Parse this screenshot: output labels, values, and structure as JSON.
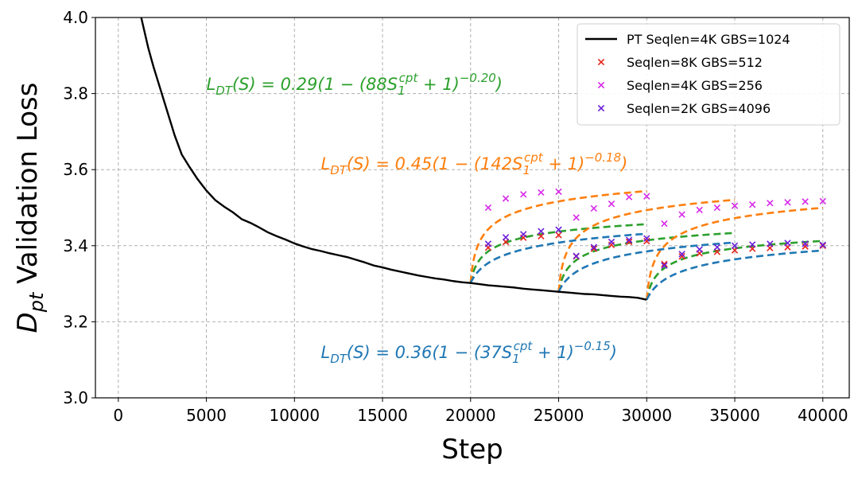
{
  "chart_data": {
    "type": "line",
    "xlabel": "Step",
    "ylabel": "D_pt Validation Loss",
    "xlim": [
      -1300,
      41500
    ],
    "ylim": [
      3.0,
      4.0
    ],
    "xticks": [
      0,
      5000,
      10000,
      15000,
      20000,
      25000,
      30000,
      35000,
      40000
    ],
    "yticks": [
      3.0,
      3.2,
      3.4,
      3.6,
      3.8,
      4.0
    ],
    "grid": true,
    "legend_position": "top-right",
    "colors": {
      "pt": "#000000",
      "green": "#2ca02c",
      "orange": "#ff7f0e",
      "blue": "#1f77b4",
      "red": "#e8241d",
      "magenta": "#d62ae8",
      "purple": "#6a1fd9"
    },
    "pt_curve": {
      "name": "PT Seqlen=4K GBS=1024",
      "points": [
        [
          1300,
          4.0
        ],
        [
          1500,
          3.96
        ],
        [
          1700,
          3.92
        ],
        [
          2000,
          3.87
        ],
        [
          2400,
          3.81
        ],
        [
          2800,
          3.75
        ],
        [
          3200,
          3.69
        ],
        [
          3600,
          3.64
        ],
        [
          4000,
          3.61
        ],
        [
          4500,
          3.575
        ],
        [
          5000,
          3.545
        ],
        [
          5500,
          3.52
        ],
        [
          6000,
          3.503
        ],
        [
          6500,
          3.488
        ],
        [
          7000,
          3.47
        ],
        [
          7500,
          3.46
        ],
        [
          8000,
          3.448
        ],
        [
          8500,
          3.435
        ],
        [
          9000,
          3.425
        ],
        [
          9500,
          3.416
        ],
        [
          10000,
          3.406
        ],
        [
          10500,
          3.398
        ],
        [
          11000,
          3.391
        ],
        [
          11500,
          3.386
        ],
        [
          12000,
          3.38
        ],
        [
          12500,
          3.375
        ],
        [
          13000,
          3.37
        ],
        [
          13500,
          3.363
        ],
        [
          14000,
          3.356
        ],
        [
          14500,
          3.348
        ],
        [
          15000,
          3.343
        ],
        [
          15500,
          3.337
        ],
        [
          16000,
          3.332
        ],
        [
          16500,
          3.327
        ],
        [
          17000,
          3.322
        ],
        [
          17500,
          3.318
        ],
        [
          18000,
          3.314
        ],
        [
          18500,
          3.311
        ],
        [
          19000,
          3.307
        ],
        [
          19500,
          3.304
        ],
        [
          20000,
          3.302
        ],
        [
          20500,
          3.299
        ],
        [
          21000,
          3.296
        ],
        [
          21500,
          3.294
        ],
        [
          22000,
          3.292
        ],
        [
          22500,
          3.29
        ],
        [
          23000,
          3.287
        ],
        [
          23500,
          3.285
        ],
        [
          24000,
          3.283
        ],
        [
          24500,
          3.281
        ],
        [
          25000,
          3.279
        ],
        [
          25500,
          3.277
        ],
        [
          26000,
          3.275
        ],
        [
          26500,
          3.273
        ],
        [
          27000,
          3.272
        ],
        [
          27500,
          3.27
        ],
        [
          28000,
          3.268
        ],
        [
          28500,
          3.266
        ],
        [
          29000,
          3.265
        ],
        [
          29500,
          3.263
        ],
        [
          30000,
          3.258
        ]
      ]
    },
    "fits": [
      {
        "color_key": "green",
        "name": "L_DT(S) = 0.29(1 - (88S_1^cpt + 1)^-0.20)",
        "starts": [
          [
            20000,
            3.302
          ],
          [
            25000,
            3.279
          ],
          [
            30000,
            3.258
          ]
        ],
        "a": 0.29,
        "b": 88,
        "c": 0.2
      },
      {
        "color_key": "orange",
        "name": "L_DT(S) = 0.45(1 - (142S_1^cpt + 1)^-0.18)",
        "starts": [
          [
            20000,
            3.302
          ],
          [
            25000,
            3.279
          ],
          [
            30000,
            3.258
          ]
        ],
        "a": 0.45,
        "b": 142,
        "c": 0.18
      },
      {
        "color_key": "blue",
        "name": "L_DT(S) = 0.36(1 - (37S_1^cpt + 1)^-0.15)",
        "starts": [
          [
            20000,
            3.302
          ],
          [
            25000,
            3.279
          ],
          [
            30000,
            3.258
          ]
        ],
        "a": 0.36,
        "b": 37,
        "c": 0.15
      }
    ],
    "series": [
      {
        "name": "Seqlen=8K GBS=512",
        "color_key": "red",
        "points": [
          [
            21000,
            3.395
          ],
          [
            22000,
            3.41
          ],
          [
            23000,
            3.421
          ],
          [
            24000,
            3.425
          ],
          [
            25000,
            3.428
          ],
          [
            26000,
            3.372
          ],
          [
            27000,
            3.392
          ],
          [
            28000,
            3.402
          ],
          [
            29000,
            3.41
          ],
          [
            30000,
            3.412
          ],
          [
            31000,
            3.352
          ],
          [
            32000,
            3.372
          ],
          [
            33000,
            3.38
          ],
          [
            34000,
            3.384
          ],
          [
            35000,
            3.388
          ],
          [
            36000,
            3.392
          ],
          [
            37000,
            3.394
          ],
          [
            38000,
            3.396
          ],
          [
            39000,
            3.398
          ],
          [
            40000,
            3.4
          ]
        ]
      },
      {
        "name": "Seqlen=4K GBS=256",
        "color_key": "magenta",
        "points": [
          [
            21000,
            3.5
          ],
          [
            22000,
            3.524
          ],
          [
            23000,
            3.535
          ],
          [
            24000,
            3.54
          ],
          [
            25000,
            3.542
          ],
          [
            26000,
            3.474
          ],
          [
            27000,
            3.498
          ],
          [
            28000,
            3.51
          ],
          [
            29000,
            3.528
          ],
          [
            30000,
            3.53
          ],
          [
            31000,
            3.458
          ],
          [
            32000,
            3.482
          ],
          [
            33000,
            3.494
          ],
          [
            34000,
            3.5
          ],
          [
            35000,
            3.505
          ],
          [
            36000,
            3.508
          ],
          [
            37000,
            3.512
          ],
          [
            38000,
            3.514
          ],
          [
            39000,
            3.516
          ],
          [
            40000,
            3.517
          ]
        ]
      },
      {
        "name": "Seqlen=2K GBS=4096",
        "color_key": "purple",
        "points": [
          [
            21000,
            3.405
          ],
          [
            22000,
            3.422
          ],
          [
            23000,
            3.43
          ],
          [
            24000,
            3.438
          ],
          [
            25000,
            3.442
          ],
          [
            26000,
            3.373
          ],
          [
            27000,
            3.396
          ],
          [
            28000,
            3.41
          ],
          [
            29000,
            3.415
          ],
          [
            30000,
            3.419
          ],
          [
            31000,
            3.348
          ],
          [
            32000,
            3.378
          ],
          [
            33000,
            3.39
          ],
          [
            34000,
            3.396
          ],
          [
            35000,
            3.4
          ],
          [
            36000,
            3.403
          ],
          [
            37000,
            3.405
          ],
          [
            38000,
            3.407
          ],
          [
            39000,
            3.405
          ],
          [
            40000,
            3.402
          ]
        ]
      }
    ],
    "legend": [
      {
        "label": "PT Seqlen=4K GBS=1024",
        "kind": "line",
        "color_key": "pt"
      },
      {
        "label": "Seqlen=8K GBS=512",
        "kind": "marker",
        "color_key": "red"
      },
      {
        "label": "Seqlen=4K GBS=256",
        "kind": "marker",
        "color_key": "magenta"
      },
      {
        "label": "Seqlen=2K GBS=4096",
        "kind": "marker",
        "color_key": "purple"
      }
    ],
    "annotations": [
      {
        "color_key": "green",
        "prefix": "L",
        "sub": "DT",
        "mid": "(S) = 0.29(1 − (88S",
        "sub1": "1",
        "sup1": "cpt",
        "tail": " + 1)",
        "sup2": "−0.20",
        "close": ")",
        "anchor_x": 5000,
        "anchor_y": 3.81
      },
      {
        "color_key": "orange",
        "prefix": "L",
        "sub": "DT",
        "mid": "(S) = 0.45(1 − (142S",
        "sub1": "1",
        "sup1": "cpt",
        "tail": " + 1)",
        "sup2": "−0.18",
        "close": ")",
        "anchor_x": 11500,
        "anchor_y": 3.6
      },
      {
        "color_key": "blue",
        "prefix": "L",
        "sub": "DT",
        "mid": "(S) = 0.36(1 − (37S",
        "sub1": "1",
        "sup1": "cpt",
        "tail": " + 1)",
        "sup2": "−0.15",
        "close": ")",
        "anchor_x": 11500,
        "anchor_y": 3.105
      }
    ]
  }
}
